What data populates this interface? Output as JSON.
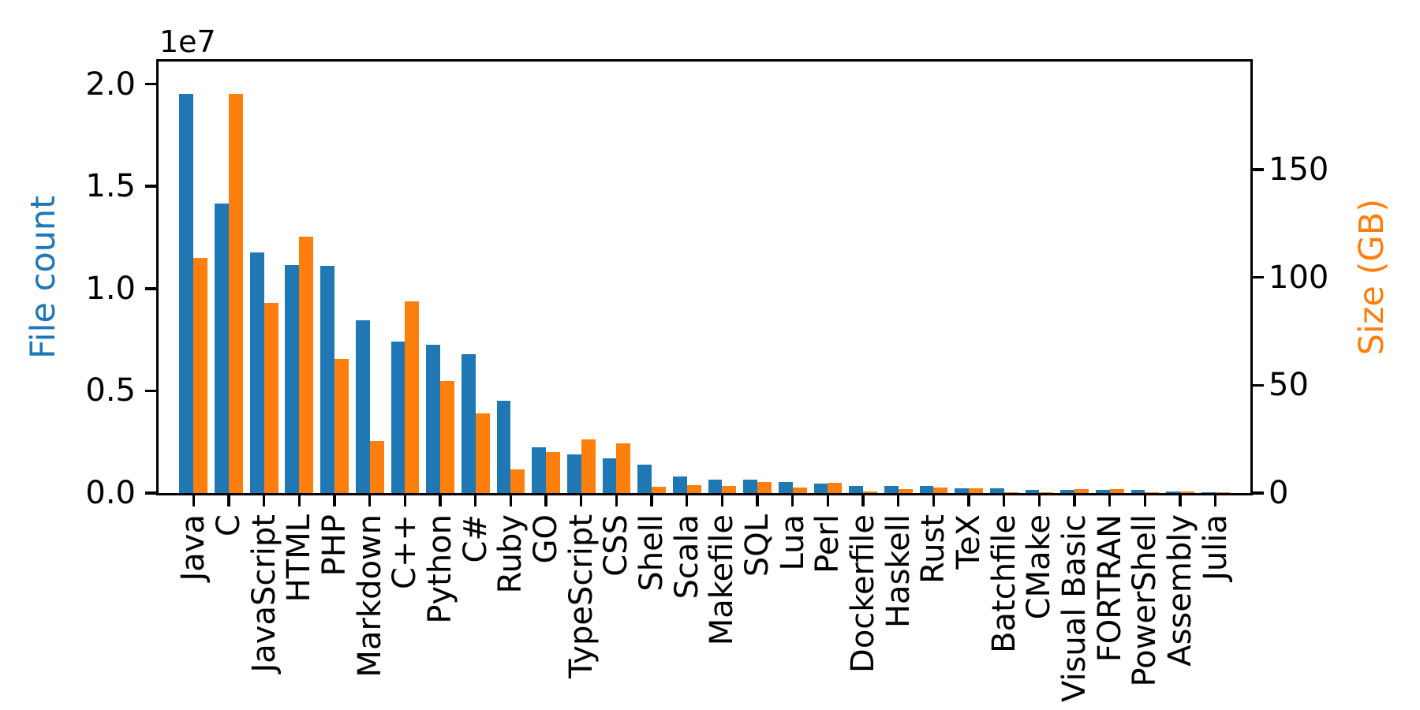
{
  "figure_title": "",
  "left_axis": {
    "title": "File count",
    "color": "#1f77b4",
    "offset_text": "1e7",
    "tick_labels": [
      "0.0",
      "0.5",
      "1.0",
      "1.5",
      "2.0"
    ]
  },
  "right_axis": {
    "title": "Size (GB)",
    "color": "#ff7f0e",
    "tick_labels": [
      "0",
      "50",
      "100",
      "150"
    ]
  },
  "chart_data": {
    "type": "bar",
    "title": "",
    "xlabel": "",
    "ylabel_left": "File count",
    "ylabel_right": "Size (GB)",
    "offset_text": "1e7",
    "grid": false,
    "legend": "none",
    "x_tick_rotation_deg": 90,
    "ylim_left": [
      0,
      21100000
    ],
    "ylim_right": [
      0,
      200
    ],
    "yticks_left": {
      "values": [
        0,
        5000000,
        10000000,
        15000000,
        20000000
      ],
      "labels": [
        "0.0",
        "0.5",
        "1.0",
        "1.5",
        "2.0"
      ]
    },
    "yticks_right": {
      "values": [
        0,
        50,
        100,
        150
      ],
      "labels": [
        "0",
        "50",
        "100",
        "150"
      ]
    },
    "categories": [
      "Java",
      "C",
      "JavaScript",
      "HTML",
      "PHP",
      "Markdown",
      "C++",
      "Python",
      "C#",
      "Ruby",
      "GO",
      "TypeScript",
      "CSS",
      "Shell",
      "Scala",
      "Makefile",
      "SQL",
      "Lua",
      "Perl",
      "Dockerfile",
      "Haskell",
      "Rust",
      "TeX",
      "Batchfile",
      "CMake",
      "Visual Basic",
      "FORTRAN",
      "PowerShell",
      "Assembly",
      "Julia"
    ],
    "series": [
      {
        "name": "File count",
        "axis": "left",
        "color": "#1f77b4",
        "values": [
          19500000,
          14150000,
          11750000,
          11150000,
          11100000,
          8450000,
          7400000,
          7250000,
          6800000,
          4500000,
          2250000,
          1900000,
          1700000,
          1400000,
          800000,
          650000,
          650000,
          550000,
          450000,
          330000,
          330000,
          330000,
          240000,
          240000,
          160000,
          160000,
          150000,
          140000,
          60000,
          30000
        ]
      },
      {
        "name": "Size (GB)",
        "axis": "right",
        "color": "#ff7f0e",
        "values": [
          109,
          185,
          88,
          119,
          62,
          24,
          89,
          52,
          37,
          11,
          19,
          25,
          23,
          3,
          3.6,
          3.3,
          5.1,
          2.5,
          4.7,
          0.6,
          1.8,
          2.5,
          2.2,
          0.3,
          0.2,
          2.0,
          1.9,
          0.3,
          0.6,
          0.2
        ]
      }
    ]
  }
}
